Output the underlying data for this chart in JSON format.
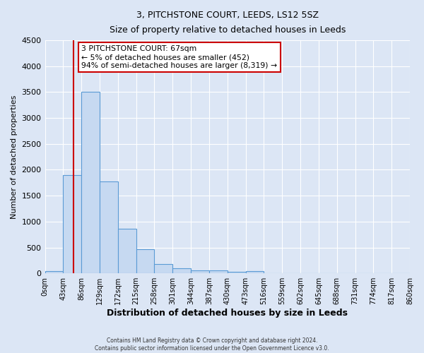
{
  "title": "3, PITCHSTONE COURT, LEEDS, LS12 5SZ",
  "subtitle": "Size of property relative to detached houses in Leeds",
  "xlabel": "Distribution of detached houses by size in Leeds",
  "ylabel": "Number of detached properties",
  "bin_labels": [
    "0sqm",
    "43sqm",
    "86sqm",
    "129sqm",
    "172sqm",
    "215sqm",
    "258sqm",
    "301sqm",
    "344sqm",
    "387sqm",
    "430sqm",
    "473sqm",
    "516sqm",
    "559sqm",
    "602sqm",
    "645sqm",
    "688sqm",
    "731sqm",
    "774sqm",
    "817sqm",
    "860sqm"
  ],
  "bar_values": [
    50,
    1900,
    3500,
    1780,
    860,
    460,
    175,
    100,
    55,
    55,
    30,
    50,
    0,
    0,
    0,
    0,
    0,
    0,
    0,
    0
  ],
  "bar_color": "#c6d9f1",
  "bar_edge_color": "#5b9bd5",
  "vline_x": 67,
  "vline_color": "#cc0000",
  "annotation_title": "3 PITCHSTONE COURT: 67sqm",
  "annotation_line1": "← 5% of detached houses are smaller (452)",
  "annotation_line2": "94% of semi-detached houses are larger (8,319) →",
  "annotation_box_color": "#ffffff",
  "annotation_box_edge": "#cc0000",
  "ylim": [
    0,
    4500
  ],
  "yticks": [
    0,
    500,
    1000,
    1500,
    2000,
    2500,
    3000,
    3500,
    4000,
    4500
  ],
  "bin_width": 43,
  "footer_line1": "Contains HM Land Registry data © Crown copyright and database right 2024.",
  "footer_line2": "Contains public sector information licensed under the Open Government Licence v3.0.",
  "background_color": "#dce6f5",
  "plot_bg_color": "#dce6f5"
}
